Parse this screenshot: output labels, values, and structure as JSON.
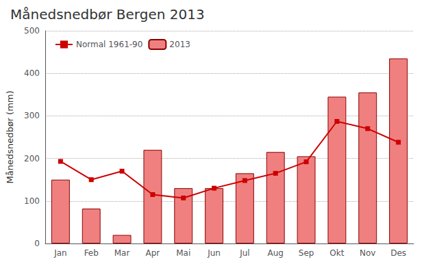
{
  "chart_data": {
    "type": "bar",
    "title": "Månedsnedbør Bergen 2013",
    "ylabel": "Månedsnedbør (mm)",
    "categories": [
      "Jan",
      "Feb",
      "Mar",
      "Apr",
      "Mai",
      "Jun",
      "Jul",
      "Aug",
      "Sep",
      "Okt",
      "Nov",
      "Des"
    ],
    "series": [
      {
        "name": "Normal 1961-90",
        "type": "line",
        "color": "#cc0000",
        "marker": "square",
        "values": [
          193,
          150,
          170,
          115,
          107,
          130,
          148,
          165,
          192,
          287,
          270,
          238
        ]
      },
      {
        "name": "2013",
        "type": "bar",
        "color": "#f08080",
        "values": [
          150,
          82,
          20,
          220,
          130,
          130,
          165,
          215,
          205,
          345,
          355,
          435
        ]
      }
    ],
    "ylim": [
      0,
      500
    ],
    "yticks": [
      0,
      100,
      200,
      300,
      400,
      500
    ],
    "grid": true,
    "legend": "upper left"
  }
}
